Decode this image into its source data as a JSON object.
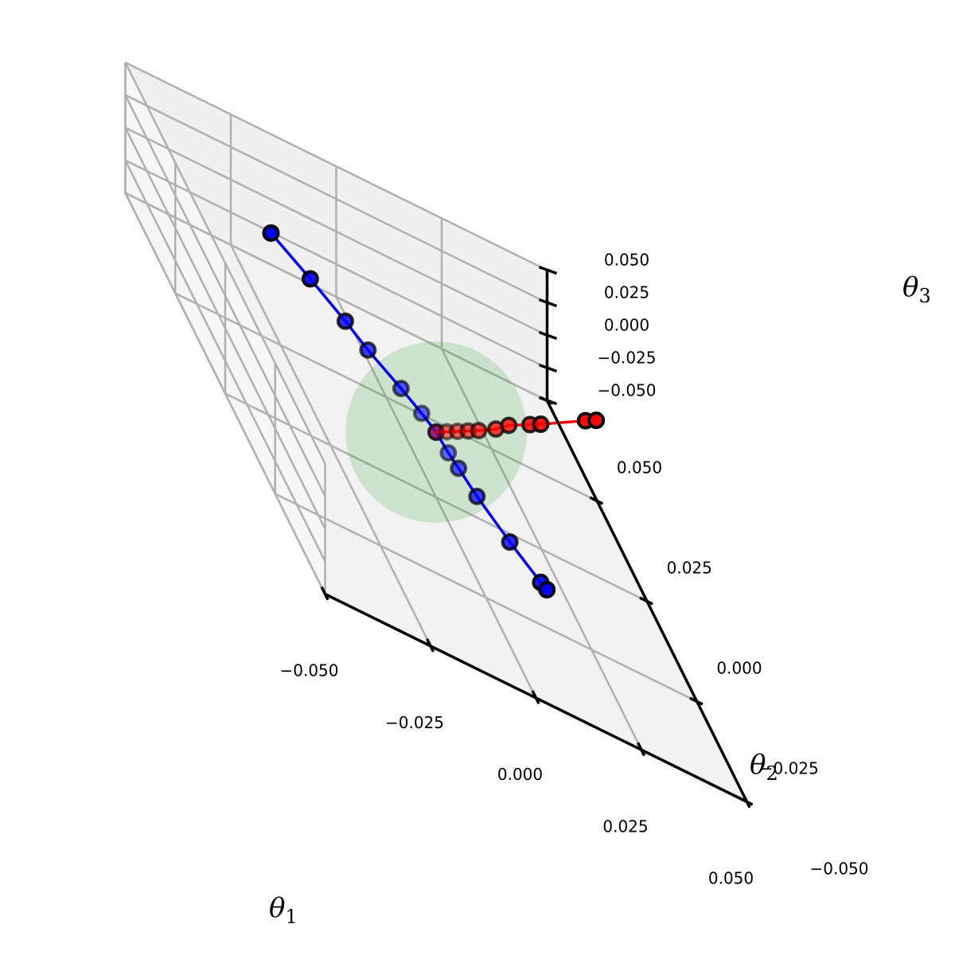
{
  "chart_data": {
    "type": "scatter",
    "projection": "3d",
    "axes": {
      "x": {
        "label": "θ",
        "label_sub": "1",
        "range": [
          -0.05,
          0.05
        ],
        "ticks": [
          -0.05,
          -0.025,
          0.0,
          0.025,
          0.05
        ],
        "tick_labels": [
          "−0.050",
          "−0.025",
          "0.000",
          "0.025",
          "0.050"
        ]
      },
      "y": {
        "label": "θ",
        "label_sub": "2",
        "range": [
          -0.05,
          0.05
        ],
        "ticks": [
          -0.05,
          -0.025,
          0.0,
          0.025,
          0.05
        ],
        "tick_labels": [
          "−0.050",
          "−0.025",
          "0.000",
          "0.025",
          "0.050"
        ]
      },
      "z": {
        "label": "θ",
        "label_sub": "3",
        "range": [
          -0.05,
          0.05
        ],
        "ticks": [
          -0.05,
          -0.025,
          0.0,
          0.025,
          0.05
        ],
        "tick_labels": [
          "−0.050",
          "−0.025",
          "0.000",
          "0.025",
          "0.050"
        ]
      }
    },
    "grid": true,
    "sphere": {
      "center": [
        0,
        0,
        0
      ],
      "radius": 0.02,
      "color": "#2ca02c",
      "opacity": 0.18
    },
    "series": [
      {
        "color": "#0000ff",
        "trajectory_a": [
          [
            0,
            0,
            0
          ],
          [
            -0.002,
            0.003,
            0.002
          ],
          [
            -0.005,
            0.007,
            0.004
          ],
          [
            -0.01,
            0.013,
            0.007
          ],
          [
            -0.013,
            0.018,
            0.009
          ],
          [
            -0.018,
            0.025,
            0.012
          ],
          [
            -0.024,
            0.032,
            0.016
          ]
        ],
        "trajectory_b": [
          [
            0,
            0,
            0
          ],
          [
            0.001,
            -0.004,
            -0.002
          ],
          [
            0.002,
            -0.007,
            -0.003
          ],
          [
            0.004,
            -0.012,
            -0.006
          ],
          [
            0.008,
            -0.02,
            -0.01
          ],
          [
            0.012,
            -0.027,
            -0.013
          ],
          [
            0.013,
            -0.028,
            -0.014
          ]
        ]
      },
      {
        "color": "#ff0000",
        "trajectory": [
          [
            0,
            0,
            0
          ],
          [
            0.003,
            0.001,
            0.002
          ],
          [
            0.006,
            0.002,
            0.004
          ],
          [
            0.009,
            0.003,
            0.006
          ],
          [
            0.012,
            0.004,
            0.008
          ],
          [
            0.017,
            0.006,
            0.011
          ],
          [
            0.021,
            0.008,
            0.014
          ],
          [
            0.027,
            0.01,
            0.018
          ],
          [
            0.03,
            0.011,
            0.02
          ],
          [
            0.043,
            0.016,
            0.028
          ],
          [
            0.046,
            0.017,
            0.03
          ]
        ]
      }
    ]
  }
}
